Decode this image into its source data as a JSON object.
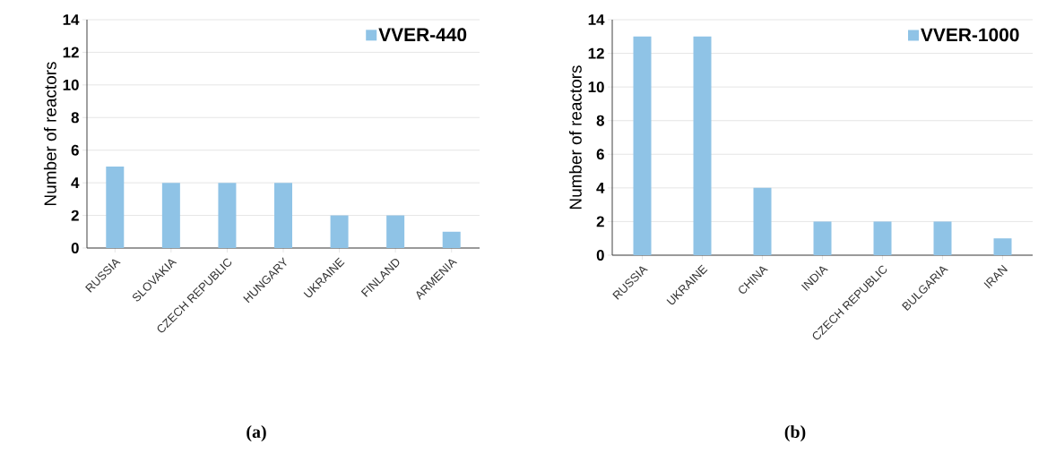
{
  "chart_data": [
    {
      "type": "bar",
      "title": "(a)",
      "ylabel": "Number of reactors",
      "categories": [
        "RUSSIA",
        "SLOVAKIA",
        "CZECH REPUBLIC",
        "HUNGARY",
        "UKRAINE",
        "FINLAND",
        "ARMENIA"
      ],
      "series": [
        {
          "name": "VVER-440",
          "color": "#8fc3e6",
          "values": [
            5,
            4,
            4,
            4,
            2,
            2,
            1
          ]
        }
      ],
      "ylim": [
        0,
        14
      ],
      "yticks": [
        0,
        2,
        4,
        6,
        8,
        10,
        12,
        14
      ],
      "grid": "y",
      "legend": "top right"
    },
    {
      "type": "bar",
      "title": "(b)",
      "ylabel": "Number of reactors",
      "categories": [
        "RUSSIA",
        "UKRAINE",
        "CHINA",
        "INDIA",
        "CZECH REPUBLIC",
        "BULGARIA",
        "IRAN"
      ],
      "series": [
        {
          "name": "VVER-1000",
          "color": "#8fc3e6",
          "values": [
            13,
            13,
            4,
            2,
            2,
            2,
            1
          ]
        }
      ],
      "ylim": [
        0,
        14
      ],
      "yticks": [
        0,
        2,
        4,
        6,
        8,
        10,
        12,
        14
      ],
      "grid": "y",
      "legend": "top right"
    }
  ]
}
